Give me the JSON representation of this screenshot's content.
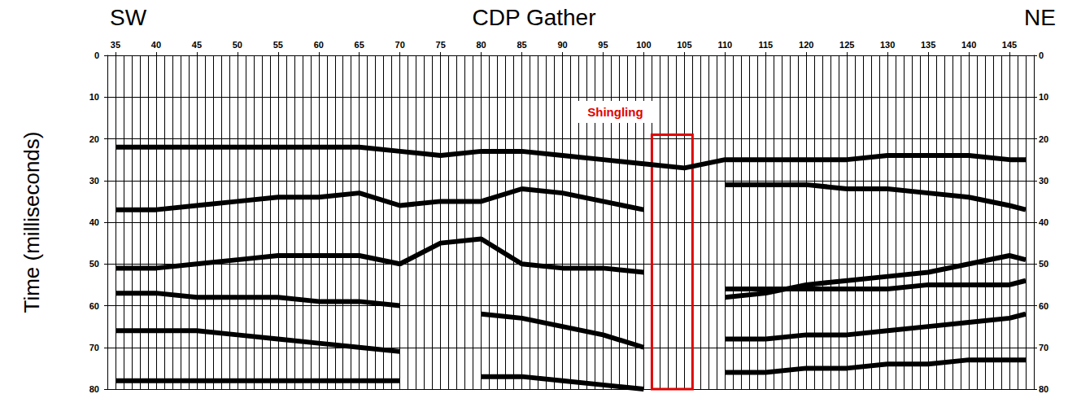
{
  "chart_data": {
    "type": "line",
    "title": "CDP Gather",
    "direction_labels": [
      "SW",
      "NE"
    ],
    "ylabel": "Time (milliseconds)",
    "x": [
      35,
      40,
      45,
      50,
      55,
      60,
      65,
      70,
      75,
      80,
      85,
      90,
      95,
      100,
      105,
      110,
      115,
      120,
      125,
      130,
      135,
      140,
      145,
      147
    ],
    "series": [
      {
        "color": "#000000",
        "values": [
          22,
          22,
          22,
          22,
          22,
          22,
          22,
          23,
          24,
          23,
          23,
          24,
          25,
          26,
          27,
          25,
          25,
          25,
          25,
          24,
          24,
          24,
          25,
          25
        ]
      },
      {
        "color": "#000000",
        "values": [
          37,
          37,
          36,
          35,
          34,
          34,
          33,
          36,
          35,
          35,
          32,
          33,
          35,
          37,
          null,
          31,
          31,
          31,
          32,
          32,
          33,
          34,
          36,
          37
        ]
      },
      {
        "color": "#000000",
        "values": [
          51,
          51,
          50,
          49,
          48,
          48,
          48,
          50,
          45,
          44,
          50,
          51,
          51,
          52,
          null,
          58,
          57,
          55,
          54,
          53,
          52,
          50,
          48,
          49
        ]
      },
      {
        "color": "#000000",
        "values": [
          57,
          57,
          58,
          58,
          58,
          59,
          59,
          60,
          null,
          null,
          null,
          null,
          null,
          null,
          null,
          56,
          56,
          56,
          56,
          56,
          55,
          55,
          55,
          54
        ]
      },
      {
        "color": "#000000",
        "values": [
          66,
          66,
          66,
          67,
          68,
          69,
          70,
          71,
          null,
          62,
          63,
          65,
          67,
          70,
          null,
          68,
          68,
          67,
          67,
          66,
          65,
          64,
          63,
          62
        ]
      },
      {
        "color": "#000000",
        "values": [
          78,
          78,
          78,
          78,
          78,
          78,
          78,
          78,
          null,
          77,
          77,
          78,
          79,
          80,
          null,
          76,
          76,
          75,
          75,
          74,
          74,
          73,
          73,
          73
        ]
      }
    ],
    "xlim": [
      34,
      148
    ],
    "xticks": [
      35,
      40,
      45,
      50,
      55,
      60,
      65,
      70,
      75,
      80,
      85,
      90,
      95,
      100,
      105,
      110,
      115,
      120,
      125,
      130,
      135,
      140,
      145
    ],
    "ylim": [
      0,
      80
    ],
    "yticks": [
      0,
      10,
      20,
      30,
      40,
      50,
      60,
      70,
      80
    ],
    "y2lim": [
      0,
      80
    ],
    "y2ticks": [
      0,
      10,
      20,
      30,
      40,
      50,
      60,
      70,
      80
    ],
    "grid": true,
    "annotations": [
      {
        "text": "Shingling",
        "color": "#e00000",
        "x": [
          101,
          106
        ],
        "y": [
          19,
          80
        ]
      }
    ]
  }
}
